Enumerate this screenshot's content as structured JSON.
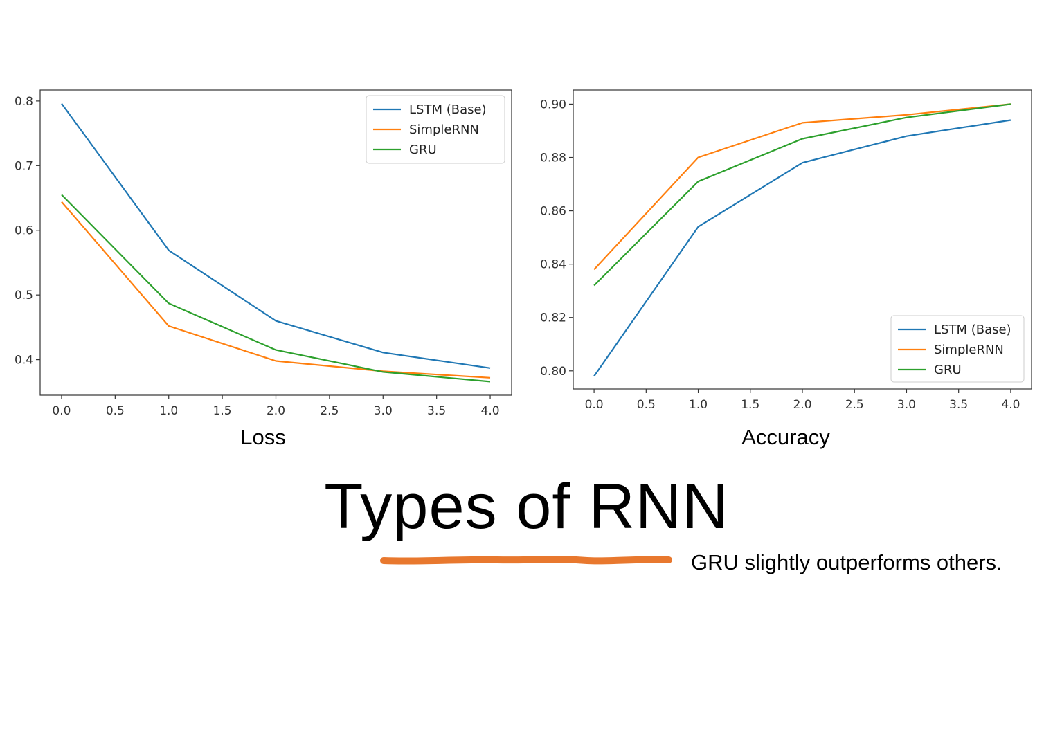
{
  "slide": {
    "title": "Types of RNN",
    "note": "GRU slightly outperforms others.",
    "underline_color": "#e8782e"
  },
  "series_colors": {
    "LSTM (Base)": "#1f77b4",
    "SimpleRNN": "#ff7f0e",
    "GRU": "#2ca02c"
  },
  "chart_data": [
    {
      "type": "line",
      "caption": "Loss",
      "x": [
        0,
        1,
        2,
        3,
        4
      ],
      "xlim": [
        -0.2,
        4.2
      ],
      "ylim": [
        0.345,
        0.817
      ],
      "xticks": [
        0.0,
        0.5,
        1.0,
        1.5,
        2.0,
        2.5,
        3.0,
        3.5,
        4.0
      ],
      "xtick_labels": [
        "0.0",
        "0.5",
        "1.0",
        "1.5",
        "2.0",
        "2.5",
        "3.0",
        "3.5",
        "4.0"
      ],
      "yticks": [
        0.4,
        0.5,
        0.6,
        0.7,
        0.8
      ],
      "ytick_labels": [
        "0.4",
        "0.5",
        "0.6",
        "0.7",
        "0.8"
      ],
      "legend": "top-right",
      "grid": false,
      "series": [
        {
          "name": "LSTM (Base)",
          "values": [
            0.796,
            0.569,
            0.46,
            0.411,
            0.387
          ]
        },
        {
          "name": "SimpleRNN",
          "values": [
            0.644,
            0.452,
            0.398,
            0.382,
            0.372
          ]
        },
        {
          "name": "GRU",
          "values": [
            0.655,
            0.487,
            0.415,
            0.381,
            0.366
          ]
        }
      ]
    },
    {
      "type": "line",
      "caption": "Accuracy",
      "x": [
        0,
        1,
        2,
        3,
        4
      ],
      "xlim": [
        -0.2,
        4.2
      ],
      "ylim": [
        0.7932,
        0.9053
      ],
      "xticks": [
        0.0,
        0.5,
        1.0,
        1.5,
        2.0,
        2.5,
        3.0,
        3.5,
        4.0
      ],
      "xtick_labels": [
        "0.0",
        "0.5",
        "1.0",
        "1.5",
        "2.0",
        "2.5",
        "3.0",
        "3.5",
        "4.0"
      ],
      "yticks": [
        0.8,
        0.82,
        0.84,
        0.86,
        0.88,
        0.9
      ],
      "ytick_labels": [
        "0.80",
        "0.82",
        "0.84",
        "0.86",
        "0.88",
        "0.90"
      ],
      "legend": "bottom-right",
      "grid": false,
      "series": [
        {
          "name": "LSTM (Base)",
          "values": [
            0.798,
            0.854,
            0.878,
            0.888,
            0.894
          ]
        },
        {
          "name": "SimpleRNN",
          "values": [
            0.838,
            0.88,
            0.893,
            0.896,
            0.9
          ]
        },
        {
          "name": "GRU",
          "values": [
            0.832,
            0.871,
            0.887,
            0.895,
            0.9
          ]
        }
      ]
    }
  ]
}
